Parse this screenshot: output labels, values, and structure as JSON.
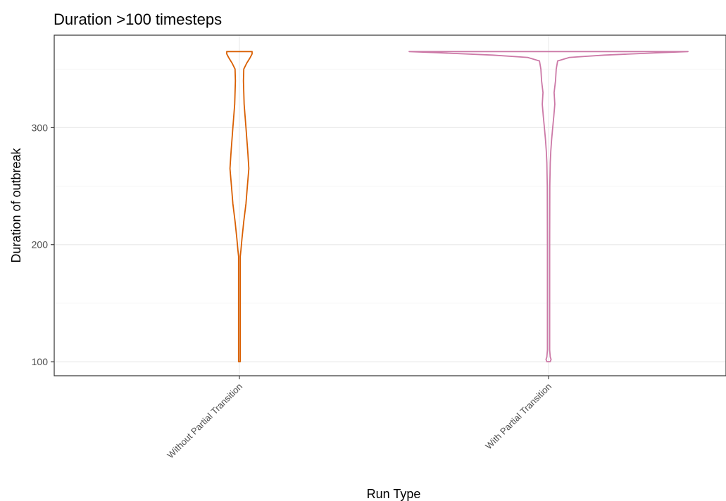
{
  "chart_data": {
    "type": "violin",
    "title": "Duration >100 timesteps",
    "xlabel": "Run Type",
    "ylabel": "Duration of outbreak",
    "ylim": [
      88,
      379
    ],
    "yticks": [
      100,
      200,
      300
    ],
    "ytick_labels": [
      "100",
      "200",
      "300"
    ],
    "grid": true,
    "legend": "none",
    "categories": [
      "Without Partial Transition",
      "With Partial Transition"
    ],
    "series": [
      {
        "category": "Without Partial Transition",
        "color": "#D95F02",
        "y_min": 100,
        "y_max": 365,
        "density": [
          [
            100,
            0.006
          ],
          [
            150,
            0.007
          ],
          [
            190,
            0.008
          ],
          [
            195,
            0.02
          ],
          [
            205,
            0.035
          ],
          [
            220,
            0.06
          ],
          [
            235,
            0.09
          ],
          [
            250,
            0.11
          ],
          [
            265,
            0.13
          ],
          [
            280,
            0.115
          ],
          [
            300,
            0.09
          ],
          [
            320,
            0.065
          ],
          [
            340,
            0.055
          ],
          [
            350,
            0.06
          ],
          [
            355,
            0.1
          ],
          [
            360,
            0.15
          ],
          [
            363,
            0.175
          ],
          [
            365,
            0.175
          ]
        ]
      },
      {
        "category": "With Partial Transition",
        "color": "#CC79A7",
        "y_min": 100,
        "y_max": 365,
        "density": [
          [
            100,
            0.012
          ],
          [
            102,
            0.018
          ],
          [
            104,
            0.012
          ],
          [
            110,
            0.008
          ],
          [
            200,
            0.008
          ],
          [
            250,
            0.009
          ],
          [
            270,
            0.012
          ],
          [
            280,
            0.016
          ],
          [
            290,
            0.022
          ],
          [
            300,
            0.03
          ],
          [
            310,
            0.038
          ],
          [
            320,
            0.045
          ],
          [
            330,
            0.04
          ],
          [
            340,
            0.05
          ],
          [
            350,
            0.055
          ],
          [
            357,
            0.065
          ],
          [
            360,
            0.15
          ],
          [
            362,
            0.4
          ],
          [
            364,
            0.8
          ],
          [
            365,
            1.0
          ]
        ]
      }
    ]
  }
}
